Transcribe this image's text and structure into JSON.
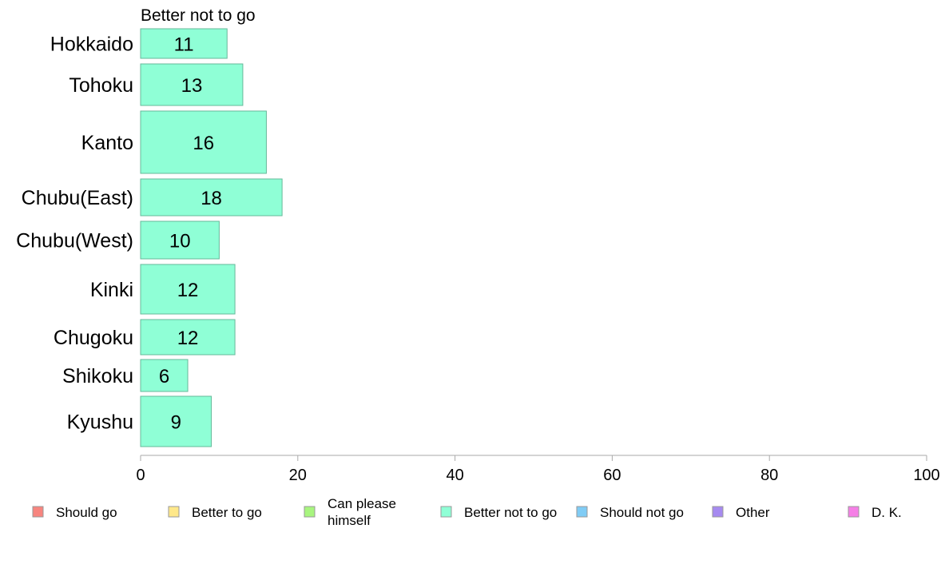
{
  "chart_data": {
    "type": "bar",
    "orientation": "horizontal",
    "title": "Better not to go",
    "categories": [
      "Hokkaido",
      "Tohoku",
      "Kanto",
      "Chubu(East)",
      "Chubu(West)",
      "Kinki",
      "Chugoku",
      "Shikoku",
      "Kyushu"
    ],
    "series": [
      {
        "name": "Better not to go",
        "values": [
          11,
          13,
          16,
          18,
          10,
          12,
          12,
          6,
          9
        ],
        "value_labels": [
          "11",
          "13",
          "16",
          "18",
          "10",
          "12",
          "12",
          "6",
          "9"
        ],
        "color": "#8fffd6"
      }
    ],
    "xlim": [
      0,
      100
    ],
    "xticks": [
      0,
      20,
      40,
      60,
      80,
      100
    ],
    "xtick_labels": [
      "0",
      "20",
      "40",
      "60",
      "80",
      "100"
    ],
    "grid": false,
    "legend_position": "bottom",
    "legend": [
      {
        "label": "Should go",
        "color": "#f7857f"
      },
      {
        "label": "Better to go",
        "color": "#ffe88a"
      },
      {
        "label": "Can please himself",
        "lines": [
          "Can please",
          "himself"
        ],
        "color": "#a8f57f"
      },
      {
        "label": "Better not to go",
        "color": "#8fffd6"
      },
      {
        "label": "Should not go",
        "color": "#80ccf5"
      },
      {
        "label": "Other",
        "color": "#a68af0"
      },
      {
        "label": "D. K.",
        "color": "#f57fe6"
      }
    ]
  }
}
